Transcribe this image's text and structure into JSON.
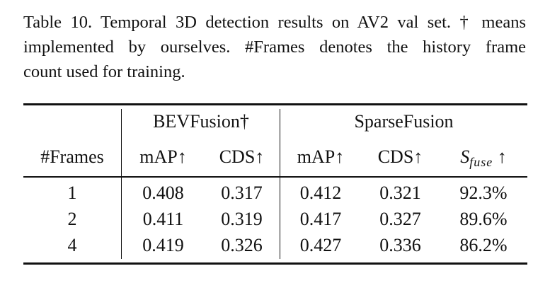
{
  "caption": {
    "lines": [
      "Table 10. Temporal 3D detection results on AV2 val set. † means",
      "implemented by ourselves.  #Frames denotes the history frame",
      "count used for training."
    ]
  },
  "table": {
    "groups": [
      "BEVFusion†",
      "SparseFusion"
    ],
    "columns": [
      "#Frames",
      "mAP↑",
      "CDS↑",
      "mAP↑",
      "CDS↑"
    ],
    "sfuse_header": {
      "main": "S",
      "sub": "fuse",
      "arrow": " ↑"
    },
    "rows": [
      [
        "1",
        "0.408",
        "0.317",
        "0.412",
        "0.321",
        "92.3%"
      ],
      [
        "2",
        "0.411",
        "0.319",
        "0.417",
        "0.327",
        "89.6%"
      ],
      [
        "4",
        "0.419",
        "0.326",
        "0.427",
        "0.336",
        "86.2%"
      ]
    ]
  }
}
